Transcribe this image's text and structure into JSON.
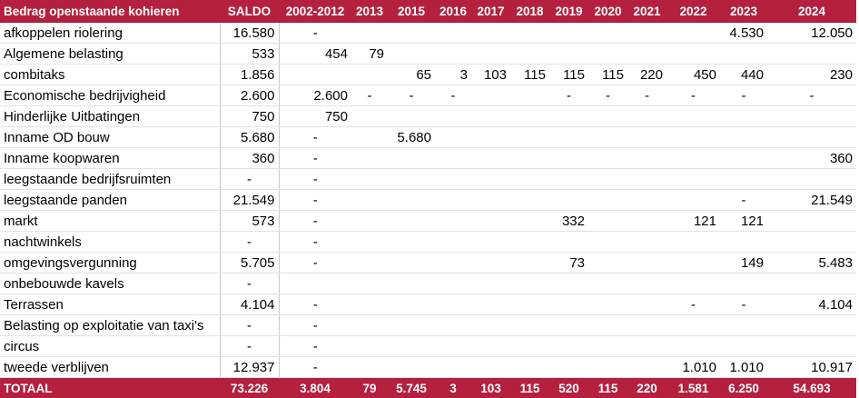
{
  "headers": [
    "Bedrag openstaande kohieren",
    "SALDO",
    "2002-2012",
    "2013",
    "2015",
    "2016",
    "2017",
    "2018",
    "2019",
    "2020",
    "2021",
    "2022",
    "2023",
    "2024"
  ],
  "rows": [
    [
      "afkoppelen riolering",
      "16.580",
      "-",
      "",
      "",
      "",
      "",
      "",
      "",
      "",
      "",
      "",
      "4.530",
      "12.050"
    ],
    [
      "Algemene belasting",
      "533",
      "454",
      "79",
      "",
      "",
      "",
      "",
      "",
      "",
      "",
      "",
      "",
      ""
    ],
    [
      "combitaks",
      "1.856",
      "",
      "",
      "65",
      "3",
      "103",
      "115",
      "115",
      "115",
      "220",
      "450",
      "440",
      "230"
    ],
    [
      "Economische bedrijvigheid",
      "2.600",
      "2.600",
      "-",
      "-",
      "-",
      "",
      "",
      "-",
      "-",
      "-",
      "-",
      "-",
      "-"
    ],
    [
      "Hinderlijke Uitbatingen",
      "750",
      "750",
      "",
      "",
      "",
      "",
      "",
      "",
      "",
      "",
      "",
      "",
      ""
    ],
    [
      "Inname OD bouw",
      "5.680",
      "-",
      "",
      "5.680",
      "",
      "",
      "",
      "",
      "",
      "",
      "",
      "",
      ""
    ],
    [
      "Inname koopwaren",
      "360",
      "-",
      "",
      "",
      "",
      "",
      "",
      "",
      "",
      "",
      "",
      "",
      "360"
    ],
    [
      "leegstaande bedrijfsruimten",
      "-",
      "-",
      "",
      "",
      "",
      "",
      "",
      "",
      "",
      "",
      "",
      "",
      ""
    ],
    [
      "leegstaande panden",
      "21.549",
      "-",
      "",
      "",
      "",
      "",
      "",
      "",
      "",
      "",
      "",
      "-",
      "21.549"
    ],
    [
      "markt",
      "573",
      "-",
      "",
      "",
      "",
      "",
      "",
      "332",
      "",
      "",
      "121",
      "121",
      ""
    ],
    [
      "nachtwinkels",
      "-",
      "-",
      "",
      "",
      "",
      "",
      "",
      "",
      "",
      "",
      "",
      "",
      ""
    ],
    [
      "omgevingsvergunning",
      "5.705",
      "-",
      "",
      "",
      "",
      "",
      "",
      "73",
      "",
      "",
      "",
      "149",
      "5.483"
    ],
    [
      "onbebouwde kavels",
      "-",
      "",
      "",
      "",
      "",
      "",
      "",
      "",
      "",
      "",
      "",
      "",
      ""
    ],
    [
      "Terrassen",
      "4.104",
      "-",
      "",
      "",
      "",
      "",
      "",
      "",
      "",
      "",
      "-",
      "-",
      "4.104"
    ],
    [
      "Belasting op exploitatie van taxi's",
      "-",
      "-",
      "",
      "",
      "",
      "",
      "",
      "",
      "",
      "",
      "",
      "",
      ""
    ],
    [
      "circus",
      "-",
      "-",
      "",
      "",
      "",
      "",
      "",
      "",
      "",
      "",
      "",
      "",
      ""
    ],
    [
      "tweede verblijven",
      "12.937",
      "-",
      "",
      "",
      "",
      "",
      "",
      "",
      "",
      "",
      "1.010",
      "1.010",
      "10.917"
    ]
  ],
  "totals": [
    "TOTAAL",
    "73.226",
    "3.804",
    "79",
    "5.745",
    "3",
    "103",
    "115",
    "520",
    "115",
    "220",
    "1.581",
    "6.250",
    "54.693"
  ],
  "colors": {
    "header_bg": "#b5203e",
    "header_text": "#ffffff"
  }
}
